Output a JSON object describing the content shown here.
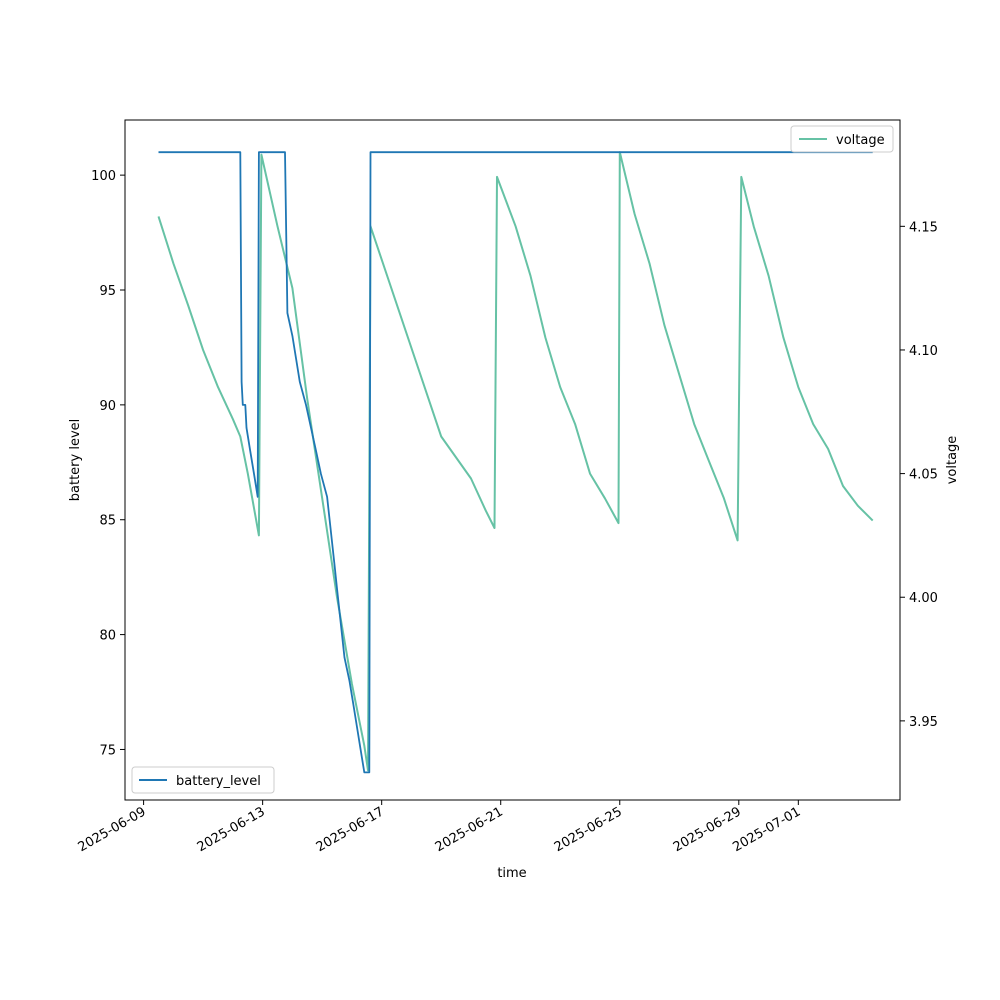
{
  "chart_data": {
    "type": "line",
    "xlabel": "time",
    "ylabel_left": "battery level",
    "ylabel_right": "voltage",
    "x_ticks": [
      "2025-06-09",
      "2025-06-13",
      "2025-06-17",
      "2025-06-21",
      "2025-06-25",
      "2025-06-29",
      "2025-07-01"
    ],
    "x_range": [
      "2025-06-08T09:00",
      "2025-07-04T10:00"
    ],
    "y_left_ticks": [
      75,
      80,
      85,
      90,
      95,
      100
    ],
    "y_left_range": [
      72.8,
      102.4
    ],
    "y_right_ticks": [
      "3.95",
      "4.00",
      "4.05",
      "4.10",
      "4.15"
    ],
    "y_right_range": [
      3.918,
      4.193
    ],
    "legend_left": {
      "placement": "lower-left",
      "label": "battery_level"
    },
    "legend_right": {
      "placement": "upper-right",
      "label": "voltage"
    },
    "colors": {
      "battery_level": "#1f77b4",
      "voltage": "#66c2a5"
    },
    "series": [
      {
        "name": "battery_level",
        "axis": "left",
        "points": [
          [
            "2025-06-09T12:00",
            101
          ],
          [
            "2025-06-12T06:00",
            101
          ],
          [
            "2025-06-12T07:00",
            91
          ],
          [
            "2025-06-12T08:00",
            90
          ],
          [
            "2025-06-12T10:00",
            90
          ],
          [
            "2025-06-12T11:00",
            89
          ],
          [
            "2025-06-12T14:00",
            88
          ],
          [
            "2025-06-12T17:00",
            87
          ],
          [
            "2025-06-12T20:00",
            86
          ],
          [
            "2025-06-12T21:00",
            101
          ],
          [
            "2025-06-13T18:00",
            101
          ],
          [
            "2025-06-13T20:00",
            94
          ],
          [
            "2025-06-14T00:00",
            93
          ],
          [
            "2025-06-14T03:00",
            92
          ],
          [
            "2025-06-14T06:00",
            91
          ],
          [
            "2025-06-14T11:00",
            90
          ],
          [
            "2025-06-14T15:00",
            89
          ],
          [
            "2025-06-14T19:00",
            88
          ],
          [
            "2025-06-14T23:00",
            87
          ],
          [
            "2025-06-15T04:00",
            86
          ],
          [
            "2025-06-15T06:00",
            85
          ],
          [
            "2025-06-15T08:00",
            84
          ],
          [
            "2025-06-15T10:00",
            83
          ],
          [
            "2025-06-15T12:00",
            82
          ],
          [
            "2025-06-15T14:00",
            81
          ],
          [
            "2025-06-15T16:00",
            80
          ],
          [
            "2025-06-15T18:00",
            79
          ],
          [
            "2025-06-15T22:00",
            78
          ],
          [
            "2025-06-16T01:00",
            77
          ],
          [
            "2025-06-16T04:00",
            76
          ],
          [
            "2025-06-16T07:00",
            75
          ],
          [
            "2025-06-16T10:00",
            74
          ],
          [
            "2025-06-16T14:00",
            74
          ],
          [
            "2025-06-16T15:00",
            101
          ],
          [
            "2025-07-03T12:00",
            101
          ]
        ]
      },
      {
        "name": "voltage",
        "axis": "right",
        "points": [
          [
            "2025-06-09T12:00",
            4.154
          ],
          [
            "2025-06-10T00:00",
            4.135
          ],
          [
            "2025-06-10T12:00",
            4.118
          ],
          [
            "2025-06-11T00:00",
            4.1
          ],
          [
            "2025-06-11T12:00",
            4.085
          ],
          [
            "2025-06-12T00:00",
            4.072
          ],
          [
            "2025-06-12T06:00",
            4.065
          ],
          [
            "2025-06-12T12:00",
            4.05
          ],
          [
            "2025-06-12T21:00",
            4.025
          ],
          [
            "2025-06-12T23:00",
            4.179
          ],
          [
            "2025-06-13T12:00",
            4.15
          ],
          [
            "2025-06-14T00:00",
            4.125
          ],
          [
            "2025-06-14T12:00",
            4.08
          ],
          [
            "2025-06-15T00:00",
            4.04
          ],
          [
            "2025-06-15T12:00",
            4.0
          ],
          [
            "2025-06-16T00:00",
            3.965
          ],
          [
            "2025-06-16T10:00",
            3.94
          ],
          [
            "2025-06-16T13:00",
            3.93
          ],
          [
            "2025-06-16T15:00",
            4.15
          ],
          [
            "2025-06-19T00:00",
            4.065
          ],
          [
            "2025-06-20T00:00",
            4.048
          ],
          [
            "2025-06-20T12:00",
            4.035
          ],
          [
            "2025-06-20T19:00",
            4.028
          ],
          [
            "2025-06-20T21:00",
            4.17
          ],
          [
            "2025-06-21T12:00",
            4.15
          ],
          [
            "2025-06-22T00:00",
            4.13
          ],
          [
            "2025-06-22T12:00",
            4.105
          ],
          [
            "2025-06-23T00:00",
            4.085
          ],
          [
            "2025-06-23T12:00",
            4.07
          ],
          [
            "2025-06-24T00:00",
            4.05
          ],
          [
            "2025-06-24T12:00",
            4.04
          ],
          [
            "2025-06-24T23:00",
            4.03
          ],
          [
            "2025-06-25T00:00",
            4.18
          ],
          [
            "2025-06-25T12:00",
            4.155
          ],
          [
            "2025-06-26T00:00",
            4.135
          ],
          [
            "2025-06-26T12:00",
            4.11
          ],
          [
            "2025-06-27T00:00",
            4.09
          ],
          [
            "2025-06-27T12:00",
            4.07
          ],
          [
            "2025-06-28T00:00",
            4.055
          ],
          [
            "2025-06-28T12:00",
            4.04
          ],
          [
            "2025-06-28T23:00",
            4.023
          ],
          [
            "2025-06-29T02:00",
            4.17
          ],
          [
            "2025-06-29T12:00",
            4.15
          ],
          [
            "2025-06-30T00:00",
            4.13
          ],
          [
            "2025-06-30T12:00",
            4.105
          ],
          [
            "2025-07-01T00:00",
            4.085
          ],
          [
            "2025-07-01T12:00",
            4.07
          ],
          [
            "2025-07-02T00:00",
            4.06
          ],
          [
            "2025-07-02T12:00",
            4.045
          ],
          [
            "2025-07-03T00:00",
            4.037
          ],
          [
            "2025-07-03T12:00",
            4.031
          ]
        ]
      }
    ]
  }
}
